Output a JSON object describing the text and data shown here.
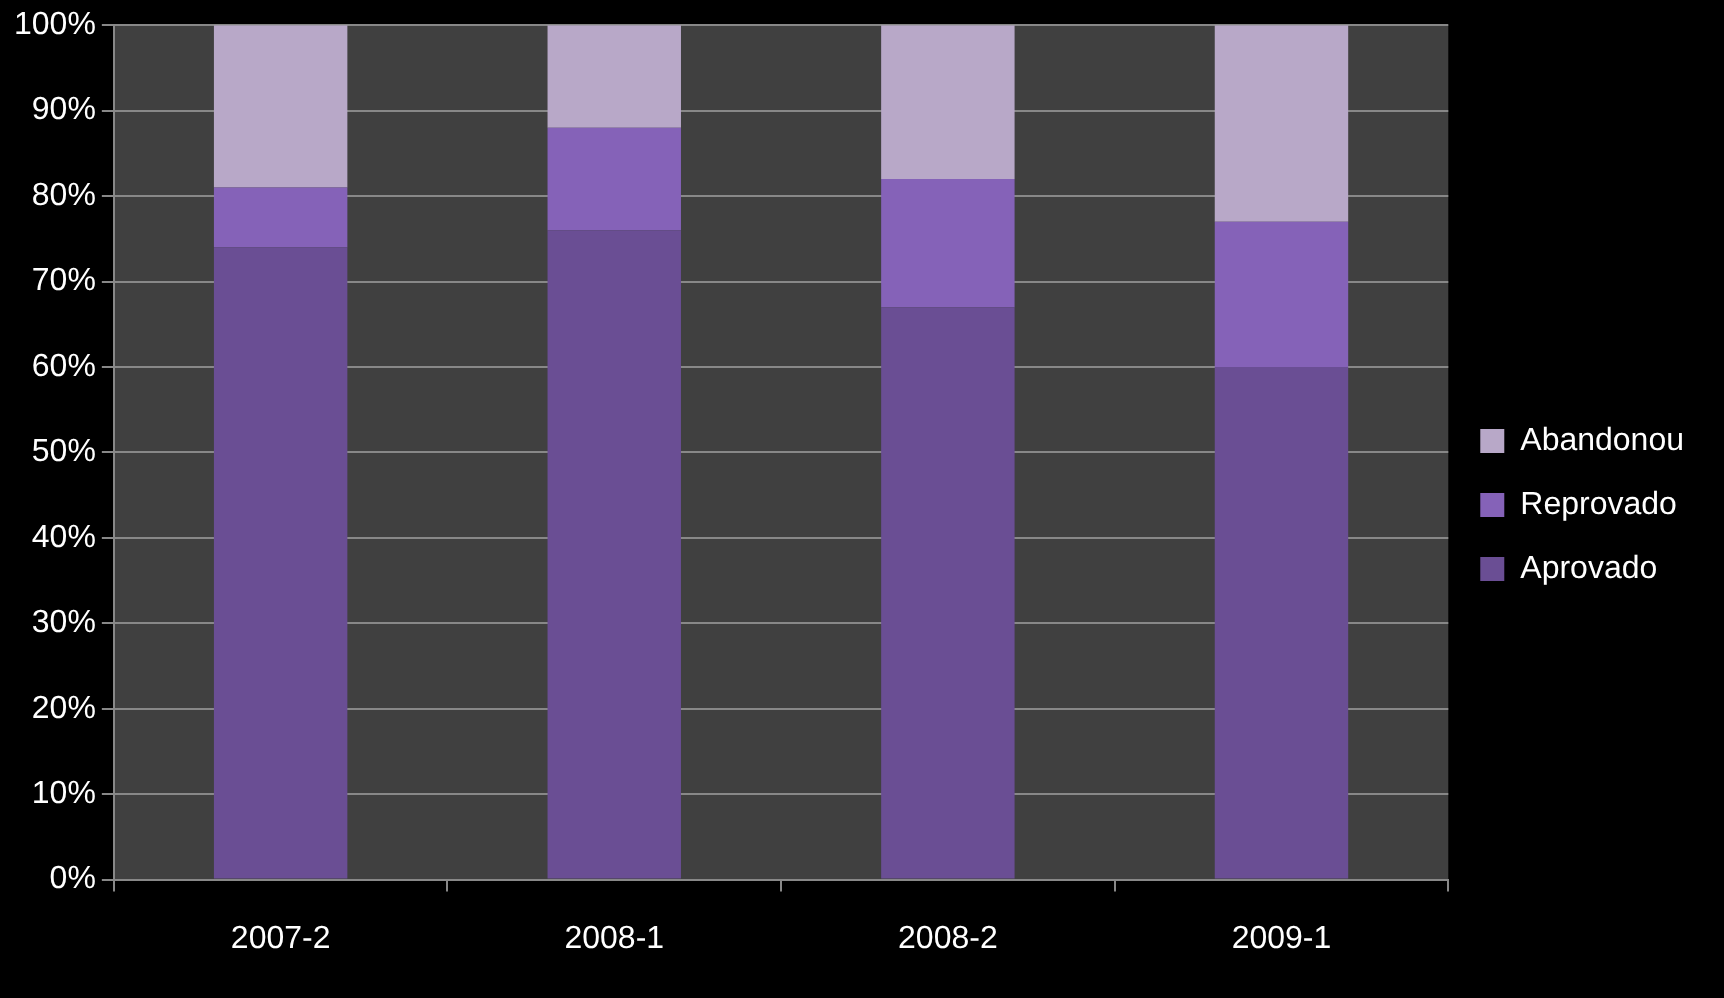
{
  "chart_data": {
    "type": "bar",
    "stacked": true,
    "categories": [
      "2007-2",
      "2008-1",
      "2008-2",
      "2009-1"
    ],
    "series": [
      {
        "name": "Aprovado",
        "color": "#6a4e94",
        "values": [
          74,
          76,
          67,
          60
        ]
      },
      {
        "name": "Reprovado",
        "color": "#8562b8",
        "values": [
          7,
          12,
          15,
          17
        ]
      },
      {
        "name": "Abandonou",
        "color": "#b8a8c8",
        "values": [
          19,
          12,
          18,
          23
        ]
      }
    ],
    "ylim": [
      0,
      100
    ],
    "yticks": [
      {
        "value": 0,
        "label": "0%"
      },
      {
        "value": 10,
        "label": "10%"
      },
      {
        "value": 20,
        "label": "20%"
      },
      {
        "value": 30,
        "label": "30%"
      },
      {
        "value": 40,
        "label": "40%"
      },
      {
        "value": 50,
        "label": "50%"
      },
      {
        "value": 60,
        "label": "60%"
      },
      {
        "value": 70,
        "label": "70%"
      },
      {
        "value": 80,
        "label": "80%"
      },
      {
        "value": 90,
        "label": "90%"
      },
      {
        "value": 100,
        "label": "100%"
      }
    ],
    "grid": "y",
    "legend": "right"
  }
}
